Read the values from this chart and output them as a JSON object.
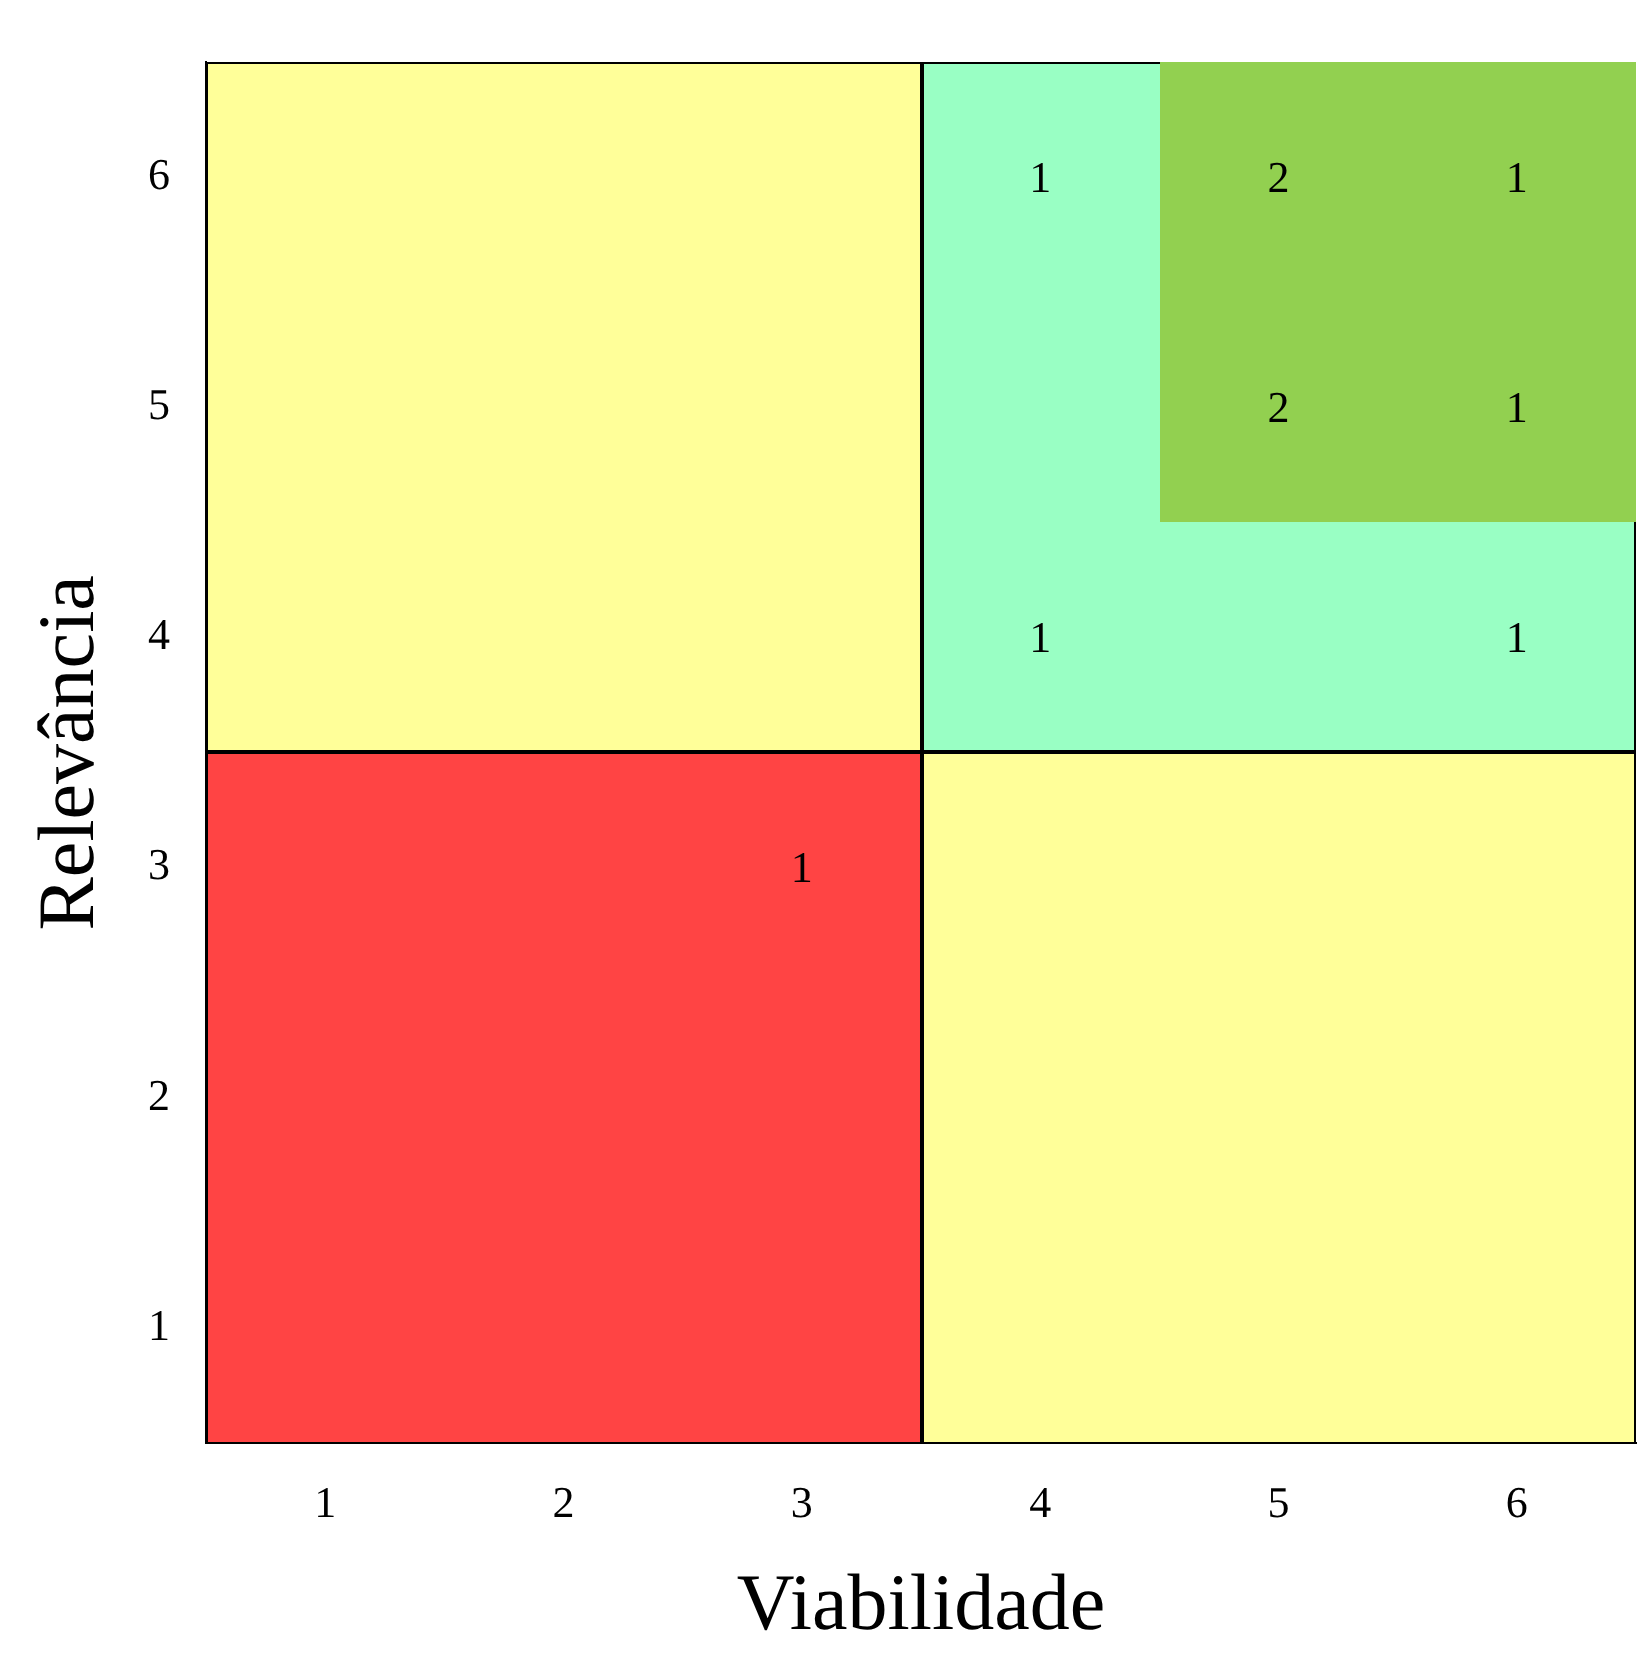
{
  "chart_data": {
    "type": "heatmap",
    "data_labels": true,
    "xlabel": "Viabilidade",
    "ylabel": "Relevância",
    "categories": [
      "1",
      "2",
      "3",
      "4",
      "5",
      "6"
    ],
    "y_categories": [
      "6",
      "5",
      "4",
      "3",
      "2",
      "1"
    ],
    "cells": [
      [
        null,
        null,
        null,
        1,
        2,
        1
      ],
      [
        null,
        null,
        null,
        null,
        2,
        1
      ],
      [
        null,
        null,
        null,
        1,
        null,
        1
      ],
      [
        null,
        null,
        1,
        null,
        null,
        null
      ],
      [
        null,
        null,
        null,
        null,
        null,
        null
      ],
      [
        null,
        null,
        null,
        null,
        null,
        null
      ]
    ]
  }
}
